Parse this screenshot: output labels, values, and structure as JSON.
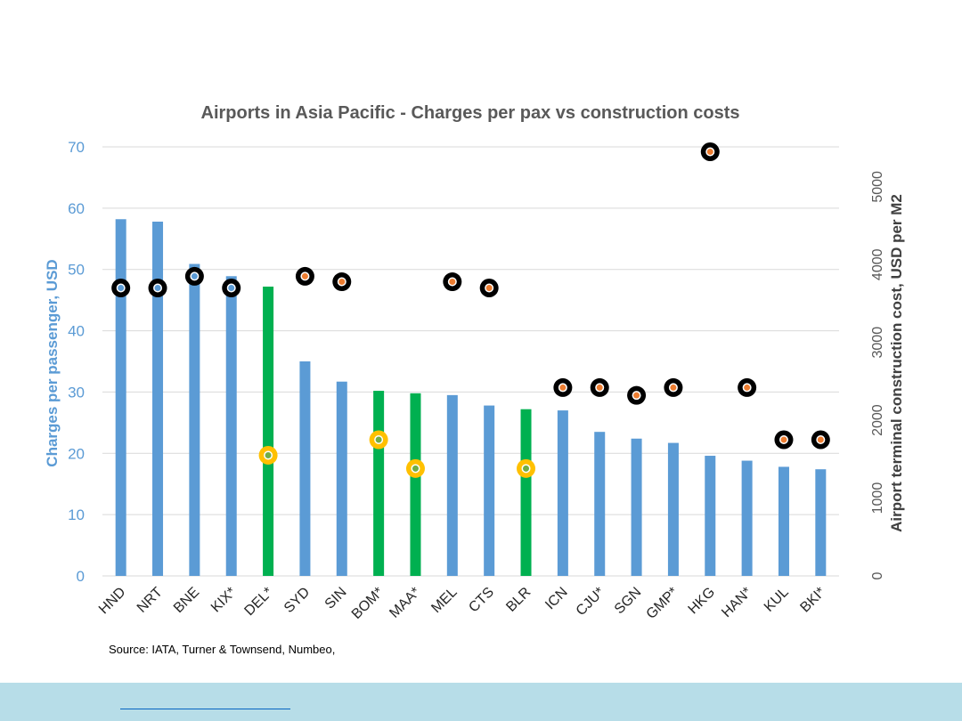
{
  "chart_data": {
    "type": "bar",
    "title": "Airports in Asia Pacific - Charges per pax vs construction costs",
    "categories": [
      "HND",
      "NRT",
      "BNE",
      "KIX*",
      "DEL*",
      "SYD",
      "SIN",
      "BOM*",
      "MAA*",
      "MEL",
      "CTS",
      "BLR",
      "ICN",
      "CJU*",
      "SGN",
      "GMP*",
      "HKG",
      "HAN*",
      "KUL",
      "BKI*"
    ],
    "series": [
      {
        "axis": "left",
        "type": "bar",
        "values": [
          58.2,
          57.8,
          50.9,
          48.9,
          47.2,
          35.0,
          31.7,
          30.2,
          29.8,
          29.5,
          27.8,
          27.2,
          27.0,
          23.5,
          22.4,
          21.7,
          19.6,
          18.8,
          17.8,
          17.4
        ],
        "colors": [
          "#5b9bd5",
          "#5b9bd5",
          "#5b9bd5",
          "#5b9bd5",
          "#00b050",
          "#5b9bd5",
          "#5b9bd5",
          "#00b050",
          "#00b050",
          "#5b9bd5",
          "#5b9bd5",
          "#00b050",
          "#5b9bd5",
          "#5b9bd5",
          "#5b9bd5",
          "#5b9bd5",
          "#5b9bd5",
          "#5b9bd5",
          "#5b9bd5",
          "#5b9bd5"
        ]
      },
      {
        "axis": "right",
        "type": "scatter",
        "values": [
          3700,
          3700,
          3850,
          3700,
          1550,
          3850,
          3780,
          1750,
          1380,
          3780,
          3700,
          1380,
          2420,
          2420,
          2320,
          2420,
          5450,
          2420,
          1750,
          1750
        ],
        "marker_styles": [
          "black-blue",
          "black-blue",
          "black-blue",
          "black-blue",
          "gold-green",
          "black-orange",
          "black-orange",
          "gold-green",
          "gold-green",
          "black-orange",
          "black-orange",
          "gold-green",
          "black-orange",
          "black-orange",
          "black-orange",
          "black-orange",
          "black-orange",
          "black-orange",
          "black-orange",
          "black-orange"
        ]
      }
    ],
    "y_left": {
      "label": "Charges per passenger, USD",
      "ylim": [
        0,
        70
      ],
      "ticks": [
        "0",
        "10",
        "20",
        "30",
        "40",
        "50",
        "60",
        "70"
      ]
    },
    "y_right": {
      "label": "Airport terminal construction cost, USD per M2",
      "ylim": [
        0,
        5513
      ],
      "ticks": [
        "0",
        "1000",
        "2000",
        "3000",
        "4000",
        "5000"
      ]
    },
    "grid": true,
    "legend": "none",
    "colors": {
      "bar_default": "#5b9bd5",
      "bar_highlight": "#00b050",
      "marker_ring_dark": "#000000",
      "marker_ring_gold": "#ffc000",
      "marker_center_blue": "#5b9bd5",
      "marker_center_orange": "#ed7d31",
      "marker_center_green": "#70ad47"
    }
  },
  "source_note": "Source: IATA, Turner & Townsend, Numbeo,"
}
